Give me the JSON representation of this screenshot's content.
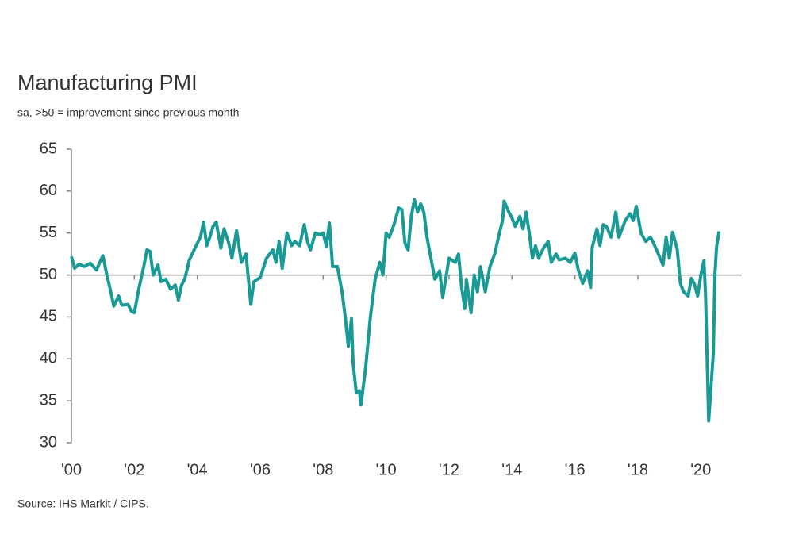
{
  "chart_data": {
    "type": "line",
    "title": "Manufacturing PMI",
    "subtitle": "sa, >50 = improvement since previous month",
    "source": "Source: IHS Markit / CIPS.",
    "color": "#1a9a96",
    "reference_line": 50,
    "xlim": [
      2000,
      2020.8
    ],
    "xticks": [
      {
        "value": 2000,
        "label": "'00"
      },
      {
        "value": 2002,
        "label": "'02"
      },
      {
        "value": 2004,
        "label": "'04"
      },
      {
        "value": 2006,
        "label": "'06"
      },
      {
        "value": 2008,
        "label": "'08"
      },
      {
        "value": 2010,
        "label": "'10"
      },
      {
        "value": 2012,
        "label": "'12"
      },
      {
        "value": 2014,
        "label": "'14"
      },
      {
        "value": 2016,
        "label": "'16"
      },
      {
        "value": 2018,
        "label": "'18"
      },
      {
        "value": 2020,
        "label": "'20"
      }
    ],
    "ylim": [
      30,
      65
    ],
    "yticks": [
      30,
      35,
      40,
      45,
      50,
      55,
      60,
      65
    ],
    "x": [
      2000.0,
      2000.1,
      2000.25,
      2000.4,
      2000.6,
      2000.8,
      2000.9,
      2001.0,
      2001.1,
      2001.25,
      2001.35,
      2001.5,
      2001.6,
      2001.8,
      2001.9,
      2002.0,
      2002.15,
      2002.3,
      2002.4,
      2002.5,
      2002.6,
      2002.75,
      2002.85,
      2003.0,
      2003.15,
      2003.3,
      2003.4,
      2003.5,
      2003.6,
      2003.75,
      2003.9,
      2004.0,
      2004.1,
      2004.2,
      2004.3,
      2004.4,
      2004.5,
      2004.6,
      2004.75,
      2004.85,
      2005.0,
      2005.1,
      2005.25,
      2005.4,
      2005.55,
      2005.7,
      2005.8,
      2006.0,
      2006.2,
      2006.4,
      2006.5,
      2006.6,
      2006.7,
      2006.85,
      2007.0,
      2007.1,
      2007.25,
      2007.4,
      2007.5,
      2007.6,
      2007.75,
      2007.9,
      2008.0,
      2008.1,
      2008.2,
      2008.3,
      2008.45,
      2008.6,
      2008.7,
      2008.8,
      2008.9,
      2008.95,
      2009.05,
      2009.15,
      2009.2,
      2009.35,
      2009.5,
      2009.65,
      2009.8,
      2009.9,
      2010.0,
      2010.1,
      2010.25,
      2010.4,
      2010.5,
      2010.6,
      2010.7,
      2010.8,
      2010.9,
      2011.0,
      2011.1,
      2011.2,
      2011.3,
      2011.45,
      2011.55,
      2011.7,
      2011.8,
      2012.0,
      2012.2,
      2012.3,
      2012.4,
      2012.5,
      2012.55,
      2012.7,
      2012.8,
      2012.9,
      2013.0,
      2013.15,
      2013.3,
      2013.45,
      2013.6,
      2013.7,
      2013.75,
      2013.9,
      2014.0,
      2014.1,
      2014.25,
      2014.35,
      2014.45,
      2014.55,
      2014.65,
      2014.75,
      2014.85,
      2015.0,
      2015.15,
      2015.25,
      2015.4,
      2015.5,
      2015.7,
      2015.85,
      2016.0,
      2016.1,
      2016.25,
      2016.4,
      2016.5,
      2016.55,
      2016.7,
      2016.8,
      2016.9,
      2017.0,
      2017.15,
      2017.3,
      2017.4,
      2017.5,
      2017.6,
      2017.75,
      2017.85,
      2017.95,
      2018.1,
      2018.25,
      2018.4,
      2018.5,
      2018.65,
      2018.8,
      2018.9,
      2019.0,
      2019.1,
      2019.25,
      2019.35,
      2019.45,
      2019.6,
      2019.7,
      2019.8,
      2019.9,
      2020.0,
      2020.1,
      2020.15,
      2020.25,
      2020.4,
      2020.45,
      2020.5,
      2020.58
    ],
    "values": [
      52.2,
      50.8,
      51.3,
      51.0,
      51.4,
      50.6,
      51.5,
      52.3,
      50.5,
      48.0,
      46.3,
      47.5,
      46.4,
      46.5,
      45.7,
      45.5,
      48.5,
      51.0,
      53.0,
      52.8,
      50.0,
      51.2,
      49.2,
      49.5,
      48.3,
      48.8,
      47.0,
      48.8,
      49.5,
      51.8,
      53.0,
      53.8,
      54.5,
      56.3,
      53.5,
      54.5,
      55.8,
      56.3,
      53.2,
      55.5,
      53.8,
      52.0,
      55.3,
      51.5,
      52.5,
      46.5,
      49.2,
      49.7,
      52.0,
      53.0,
      51.5,
      54.0,
      50.8,
      55.0,
      53.5,
      54.0,
      53.5,
      56.0,
      54.0,
      53.0,
      55.0,
      54.8,
      55.0,
      53.4,
      56.2,
      51.0,
      51.0,
      48.0,
      45.0,
      41.5,
      44.8,
      39.5,
      36.0,
      36.2,
      34.5,
      39.0,
      45.0,
      49.5,
      51.5,
      50.0,
      55.0,
      54.5,
      56.0,
      58.0,
      57.8,
      53.8,
      53.0,
      57.0,
      59.0,
      57.5,
      58.5,
      57.5,
      54.5,
      51.5,
      49.5,
      50.5,
      47.3,
      52.0,
      51.5,
      52.5,
      48.5,
      46.0,
      49.5,
      45.5,
      50.0,
      48.0,
      51.0,
      48.0,
      51.0,
      52.5,
      55.0,
      56.5,
      58.8,
      57.5,
      56.8,
      55.8,
      57.0,
      55.5,
      57.5,
      55.0,
      52.0,
      53.5,
      52.0,
      53.2,
      54.0,
      51.5,
      52.5,
      51.8,
      52.0,
      51.5,
      52.6,
      50.7,
      49.0,
      50.5,
      48.5,
      53.3,
      55.5,
      53.5,
      56.0,
      55.8,
      54.5,
      57.5,
      54.5,
      55.5,
      56.5,
      57.3,
      56.5,
      58.2,
      55.0,
      54.0,
      54.5,
      53.8,
      52.5,
      51.2,
      54.5,
      52.0,
      55.1,
      53.1,
      49.0,
      48.0,
      47.5,
      49.6,
      48.9,
      47.5,
      50.0,
      51.7,
      47.8,
      32.6,
      40.7,
      50.1,
      53.3,
      55.2
    ]
  }
}
